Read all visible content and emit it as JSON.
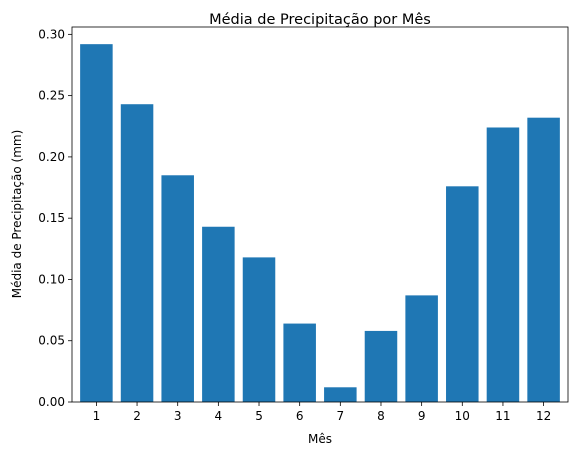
{
  "chart_data": {
    "type": "bar",
    "title": "Média de Precipitação por Mês",
    "xlabel": "Mês",
    "ylabel": "Média de Precipitação (mm)",
    "categories": [
      "1",
      "2",
      "3",
      "4",
      "5",
      "6",
      "7",
      "8",
      "9",
      "10",
      "11",
      "12"
    ],
    "values": [
      0.292,
      0.243,
      0.185,
      0.143,
      0.118,
      0.064,
      0.012,
      0.058,
      0.087,
      0.176,
      0.224,
      0.232
    ],
    "ylim": [
      0,
      0.306
    ],
    "yticks": [
      "0.00",
      "0.05",
      "0.10",
      "0.15",
      "0.20",
      "0.25",
      "0.30"
    ],
    "bar_color": "#1f77b4",
    "grid": false,
    "legend": "none"
  }
}
